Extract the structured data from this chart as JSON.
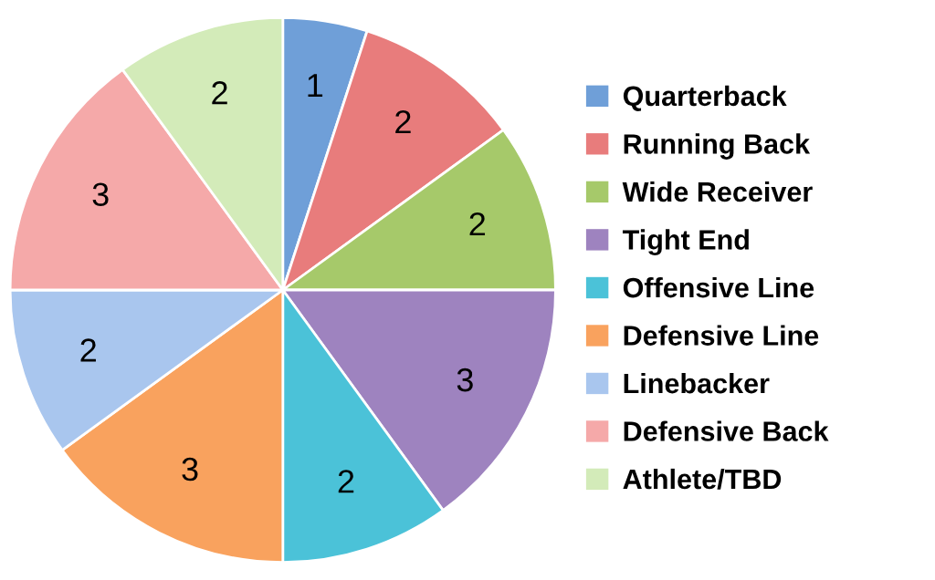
{
  "chart_data": {
    "type": "pie",
    "categories": [
      "Quarterback",
      "Running Back",
      "Wide Receiver",
      "Tight End",
      "Offensive Line",
      "Defensive Line",
      "Linebacker",
      "Defensive Back",
      "Athlete/TBD"
    ],
    "values": [
      1,
      2,
      2,
      3,
      2,
      3,
      2,
      3,
      2
    ],
    "colors": [
      "#6f9fd8",
      "#e87c7c",
      "#a6c96a",
      "#9e83bf",
      "#4bc2d8",
      "#f9a25e",
      "#a9c6ee",
      "#f5a9a9",
      "#d3ebb9"
    ],
    "data_labels": true,
    "legend": "right"
  }
}
